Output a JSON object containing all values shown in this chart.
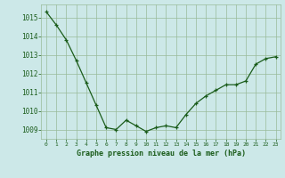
{
  "x": [
    0,
    1,
    2,
    3,
    4,
    5,
    6,
    7,
    8,
    9,
    10,
    11,
    12,
    13,
    14,
    15,
    16,
    17,
    18,
    19,
    20,
    21,
    22,
    23
  ],
  "y": [
    1015.3,
    1014.6,
    1013.8,
    1012.7,
    1011.5,
    1010.3,
    1009.1,
    1009.0,
    1009.5,
    1009.2,
    1008.9,
    1009.1,
    1009.2,
    1009.1,
    1009.8,
    1010.4,
    1010.8,
    1011.1,
    1011.4,
    1011.4,
    1011.6,
    1012.5,
    1012.8,
    1012.9
  ],
  "line_color": "#1a5c1a",
  "marker_color": "#1a5c1a",
  "bg_color": "#cce8e8",
  "grid_color": "#99bb99",
  "xlabel": "Graphe pression niveau de la mer (hPa)",
  "xlabel_color": "#1a5c1a",
  "tick_color": "#1a5c1a",
  "ylim": [
    1008.5,
    1015.7
  ],
  "yticks": [
    1009,
    1010,
    1011,
    1012,
    1013,
    1014,
    1015
  ],
  "xticks": [
    0,
    1,
    2,
    3,
    4,
    5,
    6,
    7,
    8,
    9,
    10,
    11,
    12,
    13,
    14,
    15,
    16,
    17,
    18,
    19,
    20,
    21,
    22,
    23
  ]
}
